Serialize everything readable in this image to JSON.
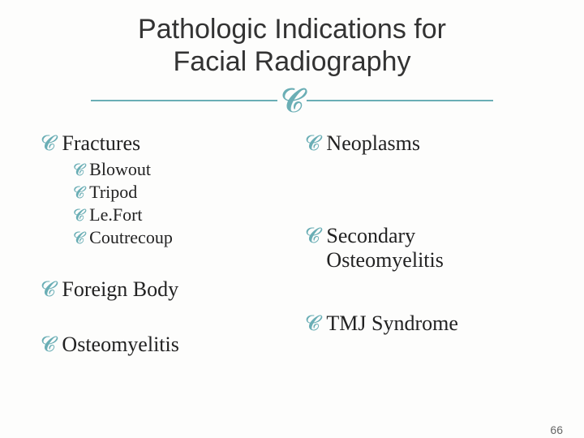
{
  "title_line1": "Pathologic Indications for",
  "title_line2": "Facial Radiography",
  "ornament_glyph": "",
  "bullet_glyph": "",
  "accent_color": "#6aaeb5",
  "text_color": "#222222",
  "background_color": "#fdfdfc",
  "fonts": {
    "title_family": "Arial",
    "title_size_pt": 26,
    "body_family": "Georgia",
    "body_l1_size_pt": 20,
    "body_l2_size_pt": 17
  },
  "left_column": {
    "fractures": {
      "label": "Fractures",
      "children": {
        "blowout": "Blowout",
        "tripod": "Tripod",
        "lefort": "Le.Fort",
        "coutrecoup": "Coutrecoup"
      }
    },
    "foreign_body": "Foreign Body",
    "osteomyelitis": "Osteomyelitis"
  },
  "right_column": {
    "neoplasms": "Neoplasms",
    "secondary_osteomyelitis": "Secondary Osteomyelitis",
    "tmj_syndrome": "TMJ Syndrome"
  },
  "page_number": "66"
}
